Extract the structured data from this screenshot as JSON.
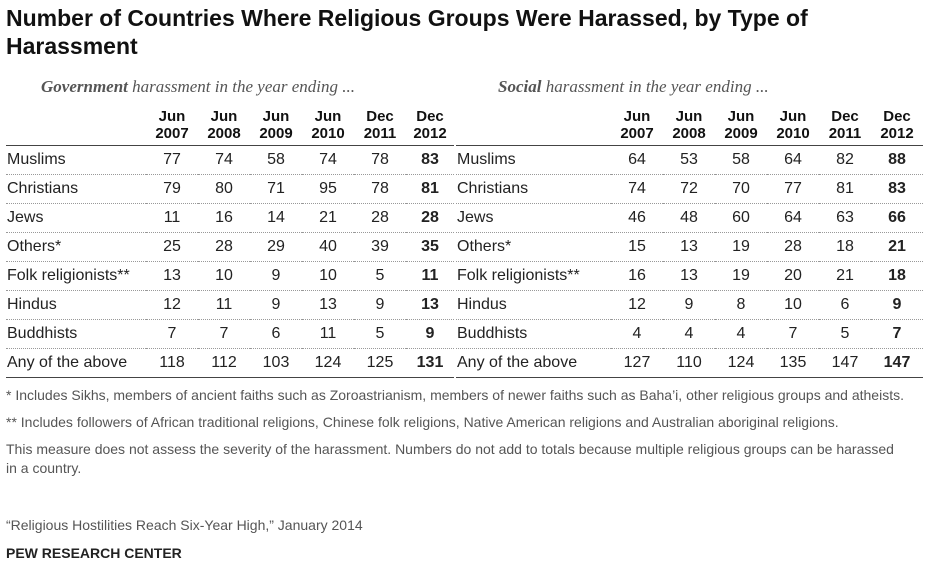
{
  "title": "Number of Countries Where Religious Groups Were Harassed, by Type of Harassment",
  "government": {
    "heading_bold": "Government",
    "heading_rest": " harassment in the year ending ..."
  },
  "social": {
    "heading_bold": "Social",
    "heading_rest": " harassment in the year ending ..."
  },
  "column_headers": [
    {
      "top": "Jun",
      "bottom": "2007"
    },
    {
      "top": "Jun",
      "bottom": "2008"
    },
    {
      "top": "Jun",
      "bottom": "2009"
    },
    {
      "top": "Jun",
      "bottom": "2010"
    },
    {
      "top": "Dec",
      "bottom": "2011"
    },
    {
      "top": "Dec",
      "bottom": "2012"
    }
  ],
  "chart_data": [
    {
      "type": "table",
      "title": "Government harassment in the year ending ...",
      "columns": [
        "Jun 2007",
        "Jun 2008",
        "Jun 2009",
        "Jun 2010",
        "Dec 2011",
        "Dec 2012"
      ],
      "rows": [
        {
          "label": "Muslims",
          "values": [
            77,
            74,
            58,
            74,
            78,
            83
          ]
        },
        {
          "label": "Christians",
          "values": [
            79,
            80,
            71,
            95,
            78,
            81
          ]
        },
        {
          "label": "Jews",
          "values": [
            11,
            16,
            14,
            21,
            28,
            28
          ]
        },
        {
          "label": "Others*",
          "values": [
            25,
            28,
            29,
            40,
            39,
            35
          ]
        },
        {
          "label": "Folk religionists**",
          "values": [
            13,
            10,
            9,
            10,
            5,
            11
          ]
        },
        {
          "label": "Hindus",
          "values": [
            12,
            11,
            9,
            13,
            9,
            13
          ]
        },
        {
          "label": "Buddhists",
          "values": [
            7,
            7,
            6,
            11,
            5,
            9
          ]
        },
        {
          "label": "Any of the above",
          "values": [
            118,
            112,
            103,
            124,
            125,
            131
          ]
        }
      ]
    },
    {
      "type": "table",
      "title": "Social harassment in the year ending ...",
      "columns": [
        "Jun 2007",
        "Jun 2008",
        "Jun 2009",
        "Jun 2010",
        "Dec 2011",
        "Dec 2012"
      ],
      "rows": [
        {
          "label": "Muslims",
          "values": [
            64,
            53,
            58,
            64,
            82,
            88
          ]
        },
        {
          "label": "Christians",
          "values": [
            74,
            72,
            70,
            77,
            81,
            83
          ]
        },
        {
          "label": "Jews",
          "values": [
            46,
            48,
            60,
            64,
            63,
            66
          ]
        },
        {
          "label": "Others*",
          "values": [
            15,
            13,
            19,
            28,
            18,
            21
          ]
        },
        {
          "label": "Folk religionists**",
          "values": [
            16,
            13,
            19,
            20,
            21,
            18
          ]
        },
        {
          "label": "Hindus",
          "values": [
            12,
            9,
            8,
            10,
            6,
            9
          ]
        },
        {
          "label": "Buddhists",
          "values": [
            4,
            4,
            4,
            7,
            5,
            7
          ]
        },
        {
          "label": "Any of the above",
          "values": [
            127,
            110,
            124,
            135,
            147,
            147
          ]
        }
      ]
    }
  ],
  "notes": [
    "* Includes Sikhs, members of ancient faiths such as Zoroastrianism, members of newer faiths such as Baha’i, other religious groups and atheists.",
    "** Includes followers of African traditional religions, Chinese folk religions, Native American religions and Australian aboriginal religions.",
    "This measure does not assess the severity of the harassment. Numbers do not add to totals because multiple religious groups can be harassed in a country."
  ],
  "source": "“Religious Hostilities Reach Six-Year High,” January 2014",
  "organization": "PEW RESEARCH CENTER"
}
